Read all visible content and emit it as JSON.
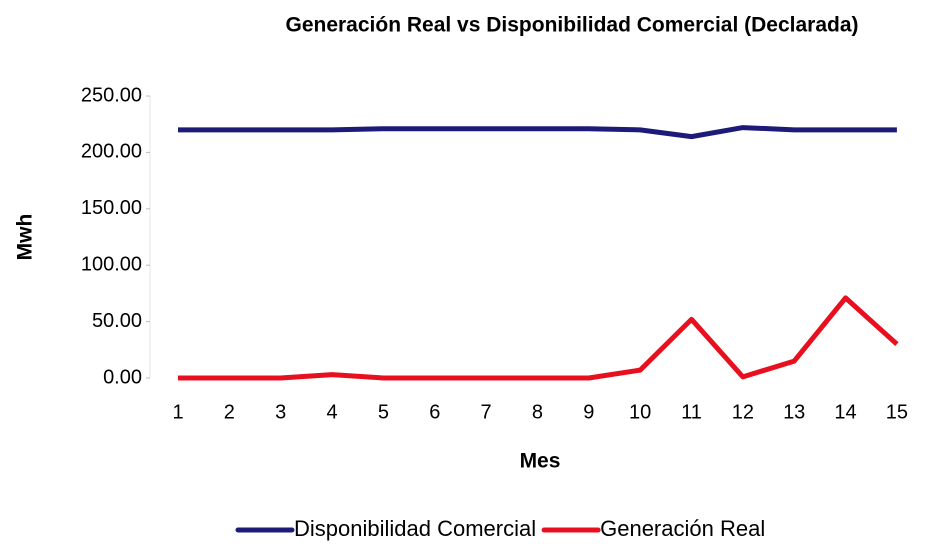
{
  "chart_data": {
    "type": "line",
    "title": "Generación Real vs Disponibilidad Comercial (Declarada)",
    "x_label": "Mes",
    "y_label": "Mwh",
    "categories": [
      "1",
      "2",
      "3",
      "4",
      "5",
      "6",
      "7",
      "8",
      "9",
      "10",
      "11",
      "12",
      "13",
      "14",
      "15"
    ],
    "series": [
      {
        "name": "Disponibilidad Comercial",
        "color": "#1c1c78",
        "values": [
          220,
          220,
          220,
          220,
          221,
          221,
          221,
          221,
          221,
          220,
          214,
          222,
          220,
          220,
          220
        ]
      },
      {
        "name": "Generación Real",
        "color": "#e8101e",
        "values": [
          0,
          0,
          0,
          3,
          0,
          0,
          0,
          0,
          0,
          7,
          52,
          1,
          15,
          71,
          30
        ]
      }
    ],
    "ylim": [
      0,
      250
    ],
    "yticks": [
      {
        "value": 0,
        "label": "0.00"
      },
      {
        "value": 50,
        "label": "50.00"
      },
      {
        "value": 100,
        "label": "100.00"
      },
      {
        "value": 150,
        "label": "150.00"
      },
      {
        "value": 200,
        "label": "200.00"
      },
      {
        "value": 250,
        "label": "250.00"
      }
    ],
    "legend": "bottom"
  }
}
